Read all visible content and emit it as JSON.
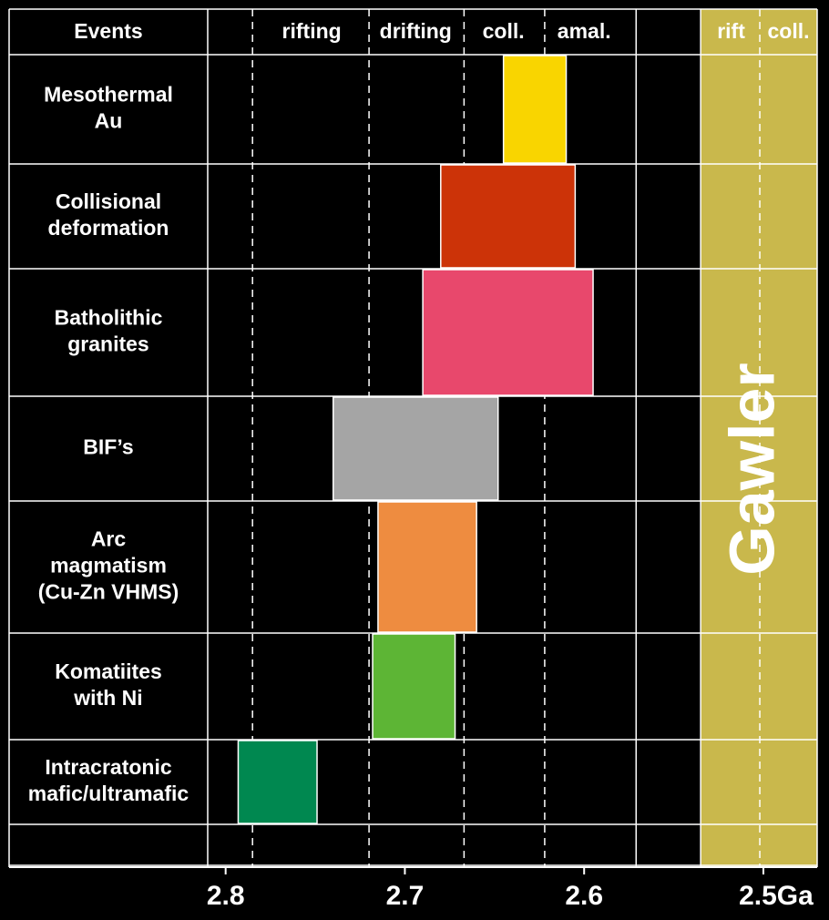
{
  "chart_data": {
    "type": "range-bar",
    "header": "Events",
    "rows": [
      {
        "label": [
          "Mesothermal",
          "Au"
        ],
        "start": 2.645,
        "end": 2.61,
        "color": "#f9d500"
      },
      {
        "label": [
          "Collisional",
          "deformation"
        ],
        "start": 2.68,
        "end": 2.605,
        "color": "#cc3308"
      },
      {
        "label": [
          "Batholithic",
          "granites"
        ],
        "start": 2.69,
        "end": 2.595,
        "color": "#e8486c"
      },
      {
        "label": [
          "BIF’s"
        ],
        "start": 2.74,
        "end": 2.648,
        "color": "#a5a5a5"
      },
      {
        "label": [
          "Arc",
          "magmatism",
          "(Cu-Zn VHMS)"
        ],
        "start": 2.715,
        "end": 2.66,
        "color": "#ee8c40"
      },
      {
        "label": [
          "Komatiites",
          "with Ni"
        ],
        "start": 2.718,
        "end": 2.672,
        "color": "#5db535"
      },
      {
        "label": [
          "Intracratonic",
          "mafic/ultramafic"
        ],
        "start": 2.793,
        "end": 2.749,
        "color": "#008850"
      }
    ],
    "phases": [
      {
        "label": "rifting",
        "at": 2.752
      },
      {
        "label": "drifting",
        "at": 2.694
      },
      {
        "label": "coll.",
        "at": 2.645
      },
      {
        "label": "amal.",
        "at": 2.6
      },
      {
        "label": "rift",
        "at": 2.518
      },
      {
        "label": "coll.",
        "at": 2.486
      }
    ],
    "dashed_lines": [
      2.785,
      2.72,
      2.667,
      2.622,
      2.502
    ],
    "solid_lines": [
      2.571
    ],
    "gawler": {
      "label": "Gawler",
      "range": [
        2.535,
        2.47
      ],
      "color": "#c9b84c"
    },
    "xlim": [
      2.81,
      2.47
    ],
    "xticks": [
      2.8,
      2.7,
      2.6,
      {
        "value": 2.5,
        "label": "2.5Ga"
      }
    ]
  }
}
